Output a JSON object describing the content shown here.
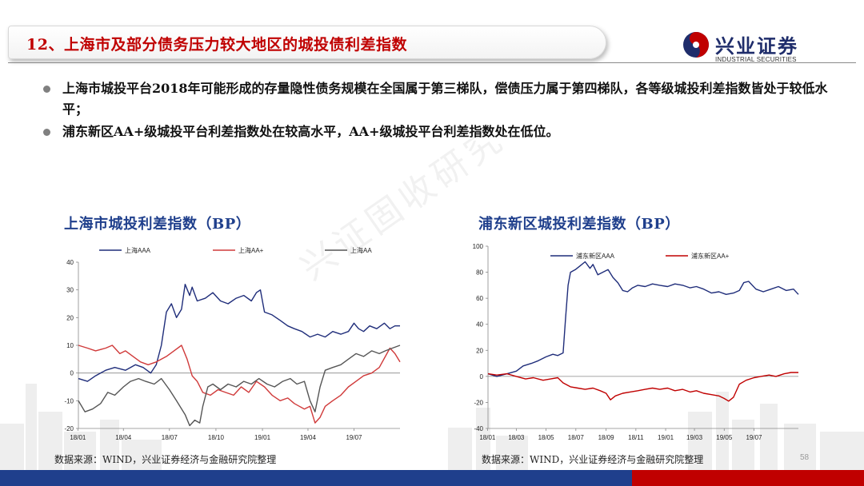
{
  "slide": {
    "title": "12、上海市及部分债务压力较大地区的城投债利差指数",
    "logo_cn": "兴业证券",
    "logo_en": "INDUSTRIAL SECURITIES",
    "watermark": "兴证固收研究",
    "bullets": [
      "上海市城投平台2018年可能形成的存量隐性债务规模在全国属于第三梯队，偿债压力属于第四梯队，各等级城投利差指数皆处于较低水平；",
      "浦东新区AA+级城投平台利差指数处在较高水平，AA+级城投平台利差指数处在低位。"
    ],
    "sources": [
      "数据来源：WIND，兴业证券经济与金融研究院整理",
      "数据来源：WIND，兴业证券经济与金融研究院整理"
    ],
    "page_number": "58",
    "colors": {
      "title_red": "#c00000",
      "brand_blue": "#1f3f8c",
      "brand_red": "#c00000"
    }
  },
  "chart_data": [
    {
      "type": "line",
      "title": "上海市城投利差指数（BP）",
      "xlabel": "",
      "ylabel": "",
      "x_ticks": [
        "18/01",
        "18/04",
        "18/07",
        "18/10",
        "19/01",
        "19/04",
        "19/07"
      ],
      "x_range": [
        "2018-01-02",
        "2019-09-30"
      ],
      "ylim": [
        -20,
        40
      ],
      "y_ticks": [
        -20,
        -10,
        0,
        10,
        20,
        30,
        40
      ],
      "legend_position": "top",
      "series": [
        {
          "name": "上海AAA",
          "color": "#1f2d7a",
          "points": [
            [
              "2018-01-02",
              -2
            ],
            [
              "2018-01-20",
              -3
            ],
            [
              "2018-02-05",
              -1
            ],
            [
              "2018-02-25",
              1
            ],
            [
              "2018-03-15",
              2
            ],
            [
              "2018-04-05",
              1
            ],
            [
              "2018-04-25",
              3
            ],
            [
              "2018-05-10",
              2
            ],
            [
              "2018-05-25",
              0
            ],
            [
              "2018-06-05",
              3
            ],
            [
              "2018-06-15",
              10
            ],
            [
              "2018-06-25",
              22
            ],
            [
              "2018-07-05",
              25
            ],
            [
              "2018-07-15",
              20
            ],
            [
              "2018-07-25",
              23
            ],
            [
              "2018-08-01",
              32
            ],
            [
              "2018-08-10",
              28
            ],
            [
              "2018-08-15",
              31
            ],
            [
              "2018-08-25",
              26
            ],
            [
              "2018-09-10",
              27
            ],
            [
              "2018-09-25",
              29
            ],
            [
              "2018-10-10",
              26
            ],
            [
              "2018-10-25",
              25
            ],
            [
              "2018-11-10",
              27
            ],
            [
              "2018-11-25",
              28
            ],
            [
              "2018-12-10",
              26
            ],
            [
              "2018-12-20",
              29
            ],
            [
              "2018-12-28",
              30
            ],
            [
              "2019-01-05",
              22
            ],
            [
              "2019-01-20",
              21
            ],
            [
              "2019-02-05",
              19
            ],
            [
              "2019-02-20",
              17
            ],
            [
              "2019-03-05",
              16
            ],
            [
              "2019-03-20",
              15
            ],
            [
              "2019-04-05",
              13
            ],
            [
              "2019-04-20",
              14
            ],
            [
              "2019-05-05",
              13
            ],
            [
              "2019-05-20",
              15
            ],
            [
              "2019-06-05",
              14
            ],
            [
              "2019-06-20",
              15
            ],
            [
              "2019-07-01",
              18
            ],
            [
              "2019-07-10",
              16
            ],
            [
              "2019-07-20",
              15
            ],
            [
              "2019-08-01",
              17
            ],
            [
              "2019-08-15",
              16
            ],
            [
              "2019-08-30",
              18
            ],
            [
              "2019-09-10",
              16
            ],
            [
              "2019-09-20",
              17
            ],
            [
              "2019-09-30",
              17
            ]
          ]
        },
        {
          "name": "上海AA+",
          "color": "#d03a3a",
          "points": [
            [
              "2018-01-02",
              10
            ],
            [
              "2018-01-20",
              9
            ],
            [
              "2018-02-05",
              8
            ],
            [
              "2018-02-25",
              9
            ],
            [
              "2018-03-10",
              10
            ],
            [
              "2018-03-25",
              7
            ],
            [
              "2018-04-05",
              8
            ],
            [
              "2018-04-20",
              6
            ],
            [
              "2018-05-05",
              4
            ],
            [
              "2018-05-20",
              3
            ],
            [
              "2018-06-05",
              4
            ],
            [
              "2018-06-25",
              6
            ],
            [
              "2018-07-10",
              8
            ],
            [
              "2018-07-25",
              10
            ],
            [
              "2018-08-05",
              5
            ],
            [
              "2018-08-15",
              -1
            ],
            [
              "2018-08-25",
              -3
            ],
            [
              "2018-09-05",
              -7
            ],
            [
              "2018-09-20",
              -8
            ],
            [
              "2018-10-05",
              -6
            ],
            [
              "2018-10-20",
              -7
            ],
            [
              "2018-11-05",
              -8
            ],
            [
              "2018-11-20",
              -5
            ],
            [
              "2018-12-05",
              -7
            ],
            [
              "2018-12-20",
              -3
            ],
            [
              "2019-01-05",
              -5
            ],
            [
              "2019-01-20",
              -8
            ],
            [
              "2019-02-05",
              -10
            ],
            [
              "2019-02-20",
              -9
            ],
            [
              "2019-03-05",
              -11
            ],
            [
              "2019-03-15",
              -12
            ],
            [
              "2019-03-25",
              -13
            ],
            [
              "2019-04-05",
              -12
            ],
            [
              "2019-04-15",
              -18
            ],
            [
              "2019-04-25",
              -16
            ],
            [
              "2019-05-05",
              -12
            ],
            [
              "2019-05-20",
              -10
            ],
            [
              "2019-06-05",
              -8
            ],
            [
              "2019-06-20",
              -5
            ],
            [
              "2019-07-05",
              -3
            ],
            [
              "2019-07-20",
              -1
            ],
            [
              "2019-08-05",
              0
            ],
            [
              "2019-08-20",
              2
            ],
            [
              "2019-09-01",
              6
            ],
            [
              "2019-09-10",
              9
            ],
            [
              "2019-09-20",
              7
            ],
            [
              "2019-09-30",
              4
            ]
          ]
        },
        {
          "name": "上海AA",
          "color": "#555555",
          "points": [
            [
              "2018-01-02",
              -10
            ],
            [
              "2018-01-15",
              -14
            ],
            [
              "2018-01-30",
              -13
            ],
            [
              "2018-02-15",
              -11
            ],
            [
              "2018-03-01",
              -7
            ],
            [
              "2018-03-15",
              -8
            ],
            [
              "2018-04-01",
              -5
            ],
            [
              "2018-04-15",
              -3
            ],
            [
              "2018-05-01",
              -2
            ],
            [
              "2018-05-15",
              -3
            ],
            [
              "2018-06-01",
              -4
            ],
            [
              "2018-06-15",
              -2
            ],
            [
              "2018-07-01",
              -6
            ],
            [
              "2018-07-15",
              -10
            ],
            [
              "2018-08-01",
              -15
            ],
            [
              "2018-08-10",
              -19
            ],
            [
              "2018-08-20",
              -17
            ],
            [
              "2018-08-30",
              -18
            ],
            [
              "2018-09-05",
              -12
            ],
            [
              "2018-09-15",
              -5
            ],
            [
              "2018-09-25",
              -4
            ],
            [
              "2018-10-10",
              -6
            ],
            [
              "2018-10-25",
              -4
            ],
            [
              "2018-11-10",
              -5
            ],
            [
              "2018-11-25",
              -3
            ],
            [
              "2018-12-10",
              -4
            ],
            [
              "2018-12-25",
              -2
            ],
            [
              "2019-01-10",
              -4
            ],
            [
              "2019-01-25",
              -5
            ],
            [
              "2019-02-10",
              -3
            ],
            [
              "2019-02-25",
              -2
            ],
            [
              "2019-03-10",
              -4
            ],
            [
              "2019-03-25",
              -3
            ],
            [
              "2019-04-05",
              -10
            ],
            [
              "2019-04-15",
              -14
            ],
            [
              "2019-04-25",
              -5
            ],
            [
              "2019-05-05",
              1
            ],
            [
              "2019-05-20",
              2
            ],
            [
              "2019-06-05",
              3
            ],
            [
              "2019-06-20",
              5
            ],
            [
              "2019-07-05",
              7
            ],
            [
              "2019-07-20",
              6
            ],
            [
              "2019-08-05",
              8
            ],
            [
              "2019-08-20",
              7
            ],
            [
              "2019-09-01",
              8
            ],
            [
              "2019-09-15",
              9
            ],
            [
              "2019-09-30",
              10
            ]
          ]
        }
      ]
    },
    {
      "type": "line",
      "title": "浦东新区城投利差指数（BP）",
      "xlabel": "",
      "ylabel": "",
      "x_ticks": [
        "18/01",
        "18/03",
        "18/05",
        "18/07",
        "18/09",
        "18/11",
        "19/01",
        "19/03",
        "19/05",
        "19/07"
      ],
      "x_range": [
        "2018-01-02",
        "2019-09-30"
      ],
      "ylim": [
        -40,
        100
      ],
      "y_ticks": [
        -40,
        -20,
        0,
        20,
        40,
        60,
        80,
        100
      ],
      "legend_position": "top",
      "series": [
        {
          "name": "浦东新区AAA",
          "color": "#1f2d7a",
          "points": [
            [
              "2018-01-02",
              2
            ],
            [
              "2018-01-20",
              0
            ],
            [
              "2018-02-10",
              2
            ],
            [
              "2018-03-01",
              4
            ],
            [
              "2018-03-15",
              8
            ],
            [
              "2018-04-01",
              10
            ],
            [
              "2018-04-15",
              12
            ],
            [
              "2018-05-01",
              15
            ],
            [
              "2018-05-15",
              17
            ],
            [
              "2018-05-25",
              16
            ],
            [
              "2018-06-05",
              18
            ],
            [
              "2018-06-10",
              45
            ],
            [
              "2018-06-15",
              70
            ],
            [
              "2018-06-20",
              80
            ],
            [
              "2018-06-30",
              82
            ],
            [
              "2018-07-10",
              85
            ],
            [
              "2018-07-20",
              88
            ],
            [
              "2018-07-30",
              83
            ],
            [
              "2018-08-05",
              86
            ],
            [
              "2018-08-15",
              78
            ],
            [
              "2018-08-25",
              80
            ],
            [
              "2018-09-05",
              82
            ],
            [
              "2018-09-15",
              76
            ],
            [
              "2018-09-25",
              72
            ],
            [
              "2018-10-05",
              66
            ],
            [
              "2018-10-15",
              65
            ],
            [
              "2018-10-25",
              68
            ],
            [
              "2018-11-05",
              70
            ],
            [
              "2018-11-20",
              69
            ],
            [
              "2018-12-05",
              71
            ],
            [
              "2018-12-20",
              70
            ],
            [
              "2019-01-05",
              69
            ],
            [
              "2019-01-20",
              71
            ],
            [
              "2019-02-05",
              70
            ],
            [
              "2019-02-20",
              68
            ],
            [
              "2019-03-05",
              69
            ],
            [
              "2019-03-20",
              67
            ],
            [
              "2019-04-05",
              64
            ],
            [
              "2019-04-20",
              65
            ],
            [
              "2019-05-05",
              63
            ],
            [
              "2019-05-20",
              64
            ],
            [
              "2019-06-01",
              66
            ],
            [
              "2019-06-10",
              72
            ],
            [
              "2019-06-20",
              73
            ],
            [
              "2019-07-05",
              67
            ],
            [
              "2019-07-20",
              65
            ],
            [
              "2019-08-05",
              67
            ],
            [
              "2019-08-20",
              69
            ],
            [
              "2019-09-05",
              66
            ],
            [
              "2019-09-20",
              67
            ],
            [
              "2019-09-30",
              63
            ]
          ]
        },
        {
          "name": "浦东新区AA+",
          "color": "#c00000",
          "points": [
            [
              "2018-01-02",
              2
            ],
            [
              "2018-01-20",
              1
            ],
            [
              "2018-02-10",
              2
            ],
            [
              "2018-03-01",
              0
            ],
            [
              "2018-03-20",
              -2
            ],
            [
              "2018-04-05",
              -1
            ],
            [
              "2018-04-25",
              -3
            ],
            [
              "2018-05-10",
              -2
            ],
            [
              "2018-05-25",
              -1
            ],
            [
              "2018-06-05",
              -5
            ],
            [
              "2018-06-20",
              -8
            ],
            [
              "2018-07-05",
              -9
            ],
            [
              "2018-07-20",
              -10
            ],
            [
              "2018-08-05",
              -9
            ],
            [
              "2018-08-20",
              -11
            ],
            [
              "2018-09-01",
              -13
            ],
            [
              "2018-09-10",
              -18
            ],
            [
              "2018-09-20",
              -15
            ],
            [
              "2018-10-05",
              -13
            ],
            [
              "2018-10-20",
              -12
            ],
            [
              "2018-11-05",
              -11
            ],
            [
              "2018-11-20",
              -10
            ],
            [
              "2018-12-05",
              -9
            ],
            [
              "2018-12-20",
              -10
            ],
            [
              "2019-01-05",
              -9
            ],
            [
              "2019-01-20",
              -11
            ],
            [
              "2019-02-05",
              -10
            ],
            [
              "2019-02-20",
              -12
            ],
            [
              "2019-03-05",
              -11
            ],
            [
              "2019-03-20",
              -13
            ],
            [
              "2019-04-05",
              -14
            ],
            [
              "2019-04-20",
              -15
            ],
            [
              "2019-05-01",
              -17
            ],
            [
              "2019-05-10",
              -19
            ],
            [
              "2019-05-20",
              -16
            ],
            [
              "2019-06-01",
              -6
            ],
            [
              "2019-06-15",
              -3
            ],
            [
              "2019-07-01",
              -1
            ],
            [
              "2019-07-15",
              0
            ],
            [
              "2019-08-01",
              1
            ],
            [
              "2019-08-15",
              0
            ],
            [
              "2019-09-01",
              2
            ],
            [
              "2019-09-15",
              3
            ],
            [
              "2019-09-30",
              3
            ]
          ]
        }
      ]
    }
  ]
}
